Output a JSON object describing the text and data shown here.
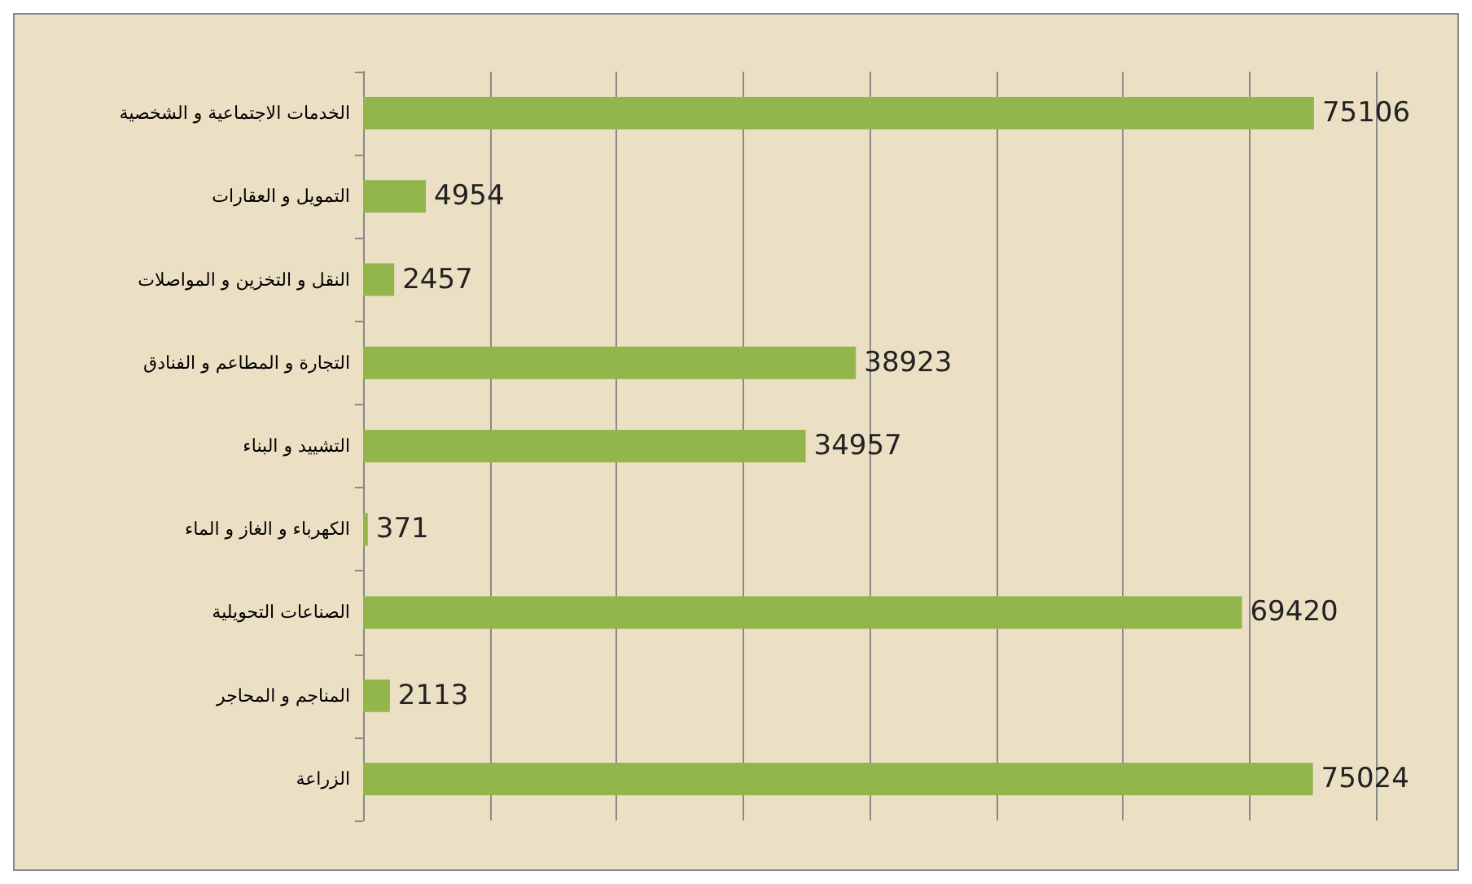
{
  "chart_data": {
    "type": "bar",
    "orientation": "horizontal",
    "categories": [
      "الخدمات الاجتماعية و الشخصية",
      "التمويل و العقارات",
      "النقل و التخزين و المواصلات",
      "التجارة و المطاعم و الفنادق",
      "التشييد و البناء",
      "الكهرباء و الغاز و الماء",
      "الصناعات التحويلية",
      "المناجم و المحاجر",
      "الزراعة"
    ],
    "values": [
      75106,
      4954,
      2457,
      38923,
      34957,
      371,
      69420,
      2113,
      75024
    ],
    "color": "#92b64c",
    "data_labels": true,
    "grid": "x",
    "xlim": [
      0,
      80000
    ],
    "xticks": [
      {
        "value": 0,
        "label": null
      },
      {
        "value": 10000,
        "label": null
      },
      {
        "value": 20000,
        "label": null
      },
      {
        "value": 30000,
        "label": null
      },
      {
        "value": 40000,
        "label": null
      },
      {
        "value": 50000,
        "label": null
      },
      {
        "value": 60000,
        "label": null
      },
      {
        "value": 70000,
        "label": null
      },
      {
        "value": 80000,
        "label": null
      }
    ]
  }
}
